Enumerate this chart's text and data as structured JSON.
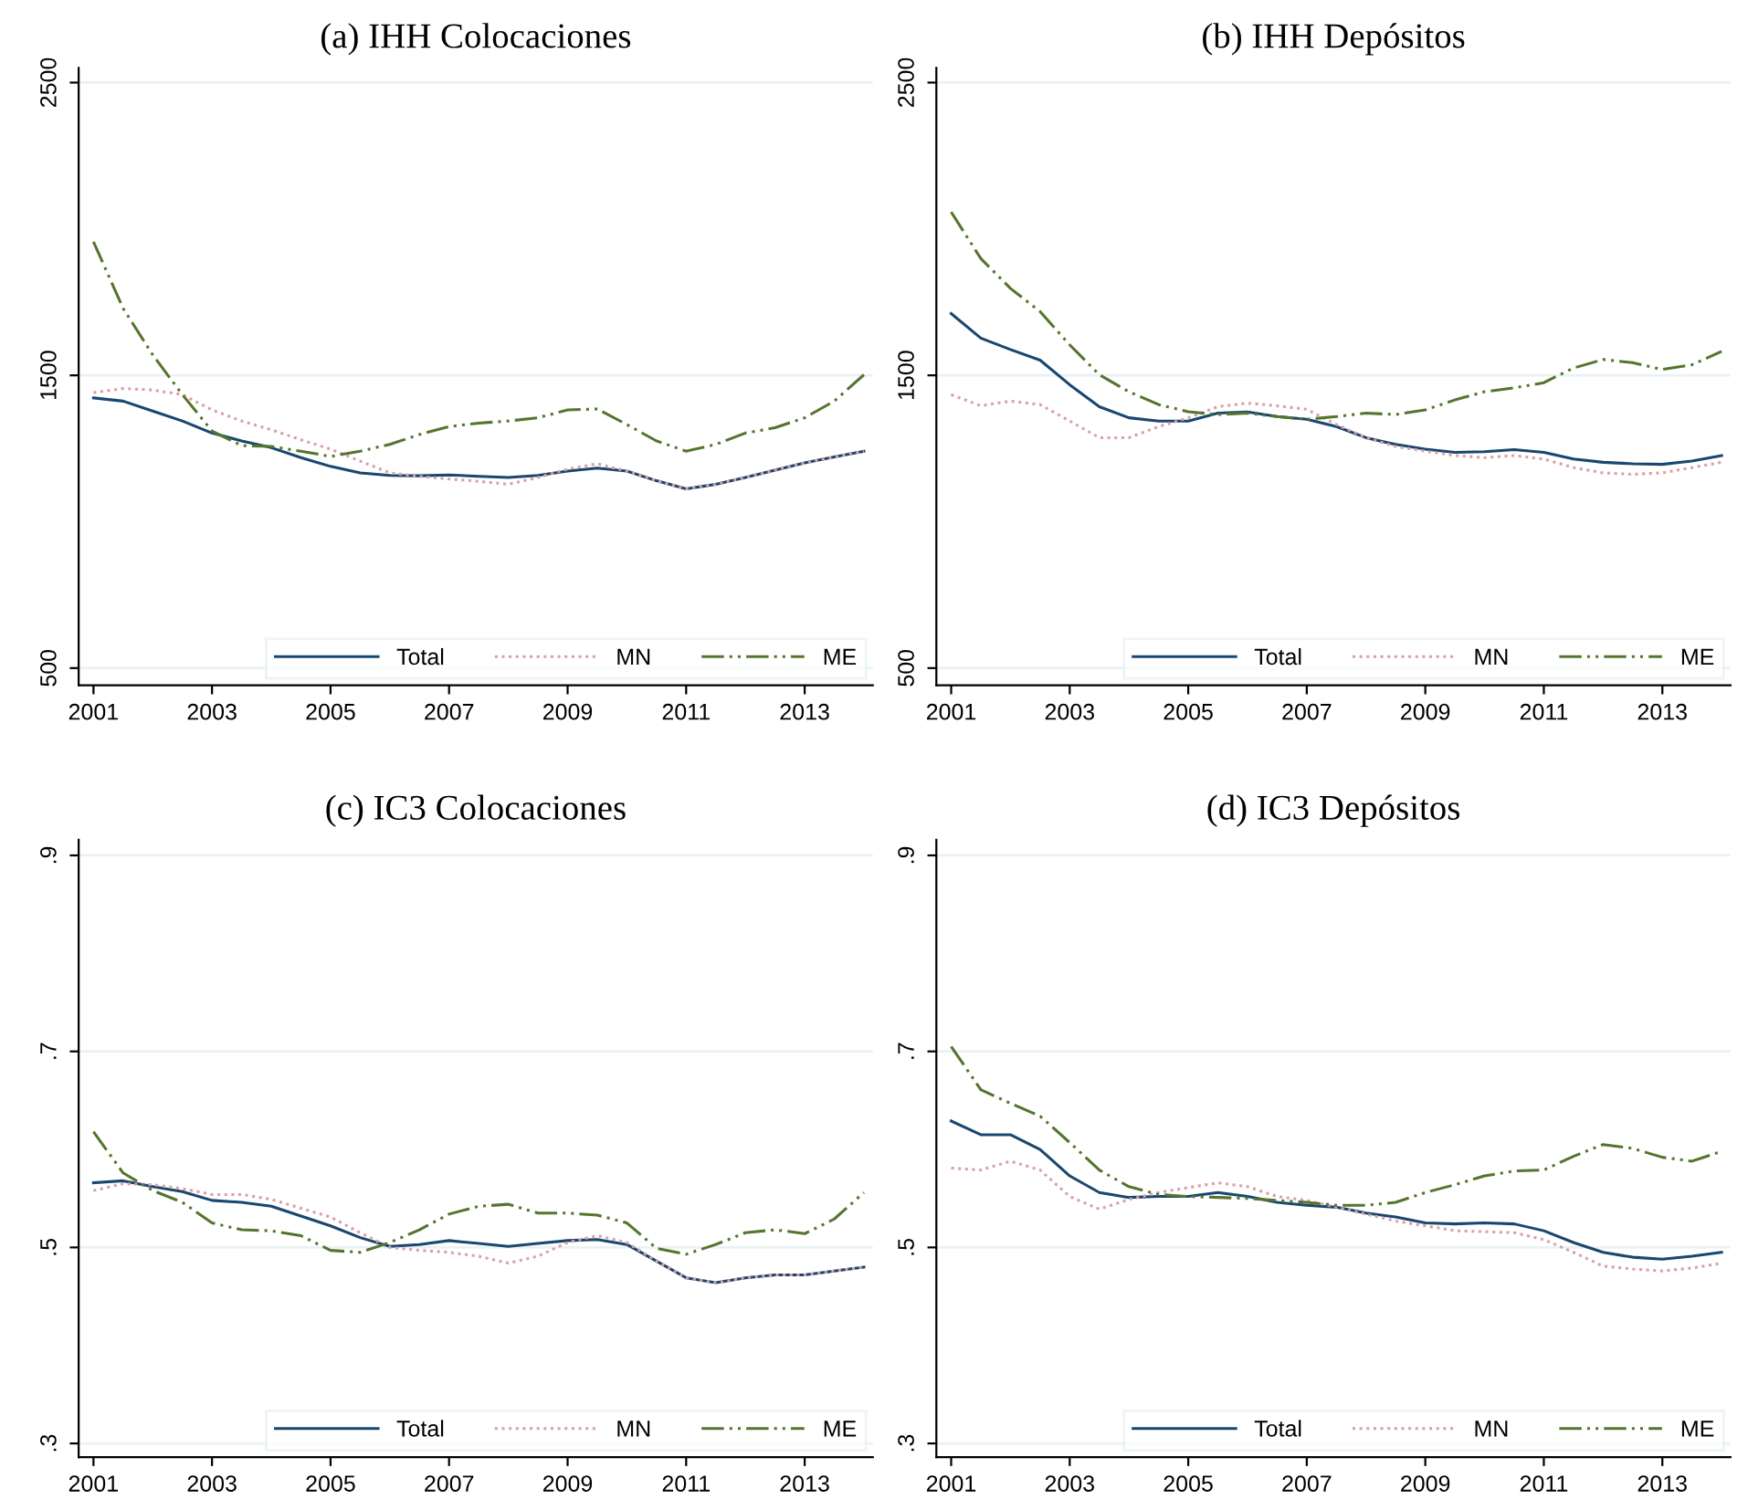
{
  "chart_data": [
    {
      "type": "line",
      "title": "(a) IHH Colocaciones",
      "x": [
        2001,
        2001.5,
        2002,
        2002.5,
        2003,
        2003.5,
        2004,
        2004.5,
        2005,
        2005.5,
        2006,
        2006.5,
        2007,
        2007.5,
        2008,
        2008.5,
        2009,
        2009.5,
        2010,
        2010.5,
        2011,
        2011.5,
        2012,
        2012.5,
        2013,
        2013.5,
        2014
      ],
      "xlim": [
        2000.75,
        2014.15
      ],
      "xticks": [
        2001,
        2003,
        2005,
        2007,
        2009,
        2011,
        2013
      ],
      "ylim": [
        441,
        2550
      ],
      "yticks": [
        500,
        1500,
        2500
      ],
      "grid": "y",
      "legend": "bottom right",
      "series": [
        {
          "name": "Total",
          "color": "#1a476f",
          "line_style": "solid",
          "values": [
            1423,
            1412,
            1378,
            1344,
            1303,
            1276,
            1253,
            1219,
            1189,
            1167,
            1158,
            1157,
            1160,
            1155,
            1151,
            1158,
            1173,
            1183,
            1173,
            1140,
            1112,
            1128,
            1151,
            1176,
            1201,
            1221,
            1241
          ]
        },
        {
          "name": "MN",
          "color": "#d9a0a8",
          "line_style": "dotted",
          "values": [
            1441,
            1455,
            1450,
            1434,
            1382,
            1344,
            1314,
            1280,
            1248,
            1207,
            1167,
            1155,
            1146,
            1138,
            1128,
            1151,
            1180,
            1198,
            1173,
            1140,
            1112,
            1128,
            1151,
            1176,
            1201,
            1221,
            1241
          ]
        },
        {
          "name": "ME",
          "color": "#55752f",
          "line_style": "dashdot",
          "values": [
            1956,
            1729,
            1570,
            1434,
            1310,
            1260,
            1257,
            1241,
            1223,
            1241,
            1264,
            1298,
            1325,
            1337,
            1344,
            1355,
            1382,
            1385,
            1332,
            1276,
            1241,
            1264,
            1303,
            1321,
            1355,
            1412,
            1502
          ]
        }
      ]
    },
    {
      "type": "line",
      "title": "(b) IHH Depósitos",
      "x": [
        2001,
        2001.5,
        2002,
        2002.5,
        2003,
        2003.5,
        2004,
        2004.5,
        2005,
        2005.5,
        2006,
        2006.5,
        2007,
        2007.5,
        2008,
        2008.5,
        2009,
        2009.5,
        2010,
        2010.5,
        2011,
        2011.5,
        2012,
        2012.5,
        2013,
        2013.5,
        2014
      ],
      "xlim": [
        2000.75,
        2014.15
      ],
      "xticks": [
        2001,
        2003,
        2005,
        2007,
        2009,
        2011,
        2013
      ],
      "ylim": [
        441,
        2550
      ],
      "yticks": [
        500,
        1500,
        2500
      ],
      "grid": "y",
      "legend": "bottom right",
      "series": [
        {
          "name": "Total",
          "color": "#1a476f",
          "line_style": "solid",
          "values": [
            1711,
            1627,
            1588,
            1552,
            1468,
            1393,
            1355,
            1344,
            1344,
            1371,
            1375,
            1359,
            1350,
            1325,
            1287,
            1264,
            1248,
            1237,
            1239,
            1246,
            1237,
            1214,
            1203,
            1198,
            1196,
            1207,
            1226
          ]
        },
        {
          "name": "MN",
          "color": "#d9a0a8",
          "line_style": "dotted",
          "values": [
            1434,
            1396,
            1412,
            1400,
            1344,
            1287,
            1287,
            1325,
            1355,
            1393,
            1405,
            1396,
            1384,
            1332,
            1287,
            1257,
            1241,
            1226,
            1219,
            1226,
            1214,
            1185,
            1167,
            1162,
            1167,
            1185,
            1203
          ]
        },
        {
          "name": "ME",
          "color": "#55752f",
          "line_style": "dashdot",
          "values": [
            2058,
            1899,
            1797,
            1718,
            1604,
            1502,
            1444,
            1400,
            1376,
            1366,
            1371,
            1359,
            1350,
            1359,
            1371,
            1366,
            1382,
            1416,
            1444,
            1457,
            1475,
            1525,
            1554,
            1543,
            1520,
            1536,
            1582
          ]
        }
      ]
    },
    {
      "type": "line",
      "title": "(c) IC3 Colocaciones",
      "x": [
        2001,
        2001.5,
        2002,
        2002.5,
        2003,
        2003.5,
        2004,
        2004.5,
        2005,
        2005.5,
        2006,
        2006.5,
        2007,
        2007.5,
        2008,
        2008.5,
        2009,
        2009.5,
        2010,
        2010.5,
        2011,
        2011.5,
        2012,
        2012.5,
        2013,
        2013.5,
        2014
      ],
      "xlim": [
        2000.75,
        2014.15
      ],
      "xticks": [
        2001,
        2003,
        2005,
        2007,
        2009,
        2011,
        2013
      ],
      "ylim": [
        0.286,
        0.916
      ],
      "yticks": [
        {
          "value": 0.3,
          "label": ".3"
        },
        {
          "value": 0.5,
          "label": ".5"
        },
        {
          "value": 0.7,
          "label": ".7"
        },
        {
          "value": 0.9,
          "label": ".9"
        }
      ],
      "grid": "y",
      "legend": "bottom right",
      "series": [
        {
          "name": "Total",
          "color": "#1a476f",
          "line_style": "solid",
          "values": [
            0.566,
            0.568,
            0.562,
            0.557,
            0.548,
            0.546,
            0.542,
            0.532,
            0.522,
            0.51,
            0.501,
            0.503,
            0.507,
            0.504,
            0.501,
            0.504,
            0.507,
            0.508,
            0.503,
            0.486,
            0.469,
            0.464,
            0.469,
            0.472,
            0.472,
            0.476,
            0.48
          ]
        },
        {
          "name": "MN",
          "color": "#d9a0a8",
          "line_style": "dotted",
          "values": [
            0.558,
            0.565,
            0.564,
            0.56,
            0.554,
            0.554,
            0.549,
            0.54,
            0.531,
            0.515,
            0.5,
            0.497,
            0.495,
            0.491,
            0.484,
            0.491,
            0.505,
            0.512,
            0.505,
            0.486,
            0.469,
            0.464,
            0.469,
            0.472,
            0.472,
            0.476,
            0.48
          ]
        },
        {
          "name": "ME",
          "color": "#55752f",
          "line_style": "dashdot",
          "values": [
            0.618,
            0.576,
            0.558,
            0.546,
            0.525,
            0.518,
            0.517,
            0.512,
            0.497,
            0.495,
            0.505,
            0.518,
            0.534,
            0.542,
            0.544,
            0.535,
            0.535,
            0.533,
            0.525,
            0.499,
            0.493,
            0.503,
            0.515,
            0.518,
            0.514,
            0.529,
            0.556
          ]
        }
      ]
    },
    {
      "type": "line",
      "title": "(d) IC3 Depósitos",
      "x": [
        2001,
        2001.5,
        2002,
        2002.5,
        2003,
        2003.5,
        2004,
        2004.5,
        2005,
        2005.5,
        2006,
        2006.5,
        2007,
        2007.5,
        2008,
        2008.5,
        2009,
        2009.5,
        2010,
        2010.5,
        2011,
        2011.5,
        2012,
        2012.5,
        2013,
        2013.5,
        2014
      ],
      "xlim": [
        2000.75,
        2014.15
      ],
      "xticks": [
        2001,
        2003,
        2005,
        2007,
        2009,
        2011,
        2013
      ],
      "ylim": [
        0.286,
        0.916
      ],
      "yticks": [
        {
          "value": 0.3,
          "label": ".3"
        },
        {
          "value": 0.5,
          "label": ".5"
        },
        {
          "value": 0.7,
          "label": ".7"
        },
        {
          "value": 0.9,
          "label": ".9"
        }
      ],
      "grid": "y",
      "legend": "bottom right",
      "series": [
        {
          "name": "Total",
          "color": "#1a476f",
          "line_style": "solid",
          "values": [
            0.629,
            0.615,
            0.615,
            0.6,
            0.573,
            0.556,
            0.551,
            0.552,
            0.552,
            0.556,
            0.552,
            0.546,
            0.543,
            0.541,
            0.535,
            0.531,
            0.525,
            0.524,
            0.525,
            0.524,
            0.517,
            0.505,
            0.495,
            0.49,
            0.488,
            0.491,
            0.495
          ]
        },
        {
          "name": "MN",
          "color": "#d9a0a8",
          "line_style": "dotted",
          "values": [
            0.581,
            0.579,
            0.588,
            0.579,
            0.552,
            0.539,
            0.549,
            0.556,
            0.561,
            0.566,
            0.562,
            0.552,
            0.548,
            0.541,
            0.534,
            0.527,
            0.522,
            0.517,
            0.516,
            0.515,
            0.508,
            0.495,
            0.481,
            0.478,
            0.476,
            0.479,
            0.484
          ]
        },
        {
          "name": "ME",
          "color": "#55752f",
          "line_style": "dashdot",
          "values": [
            0.705,
            0.661,
            0.647,
            0.634,
            0.607,
            0.579,
            0.562,
            0.554,
            0.552,
            0.551,
            0.55,
            0.548,
            0.546,
            0.543,
            0.543,
            0.546,
            0.556,
            0.564,
            0.573,
            0.578,
            0.579,
            0.593,
            0.605,
            0.601,
            0.592,
            0.588,
            0.598
          ]
        }
      ]
    }
  ]
}
